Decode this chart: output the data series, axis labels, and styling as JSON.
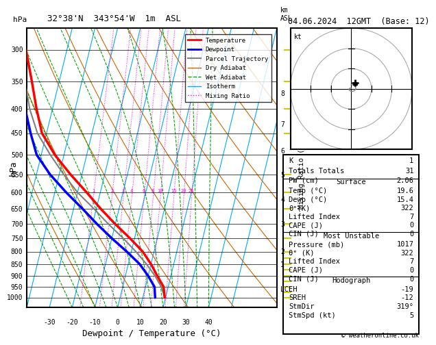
{
  "title_left": "32°38'N  343°54'W  1m  ASL",
  "title_right": "04.06.2024  12GMT  (Base: 12)",
  "xlabel": "Dewpoint / Temperature (°C)",
  "ylabel_left": "hPa",
  "ylabel_right": "Mixing Ratio (g/kg)",
  "pressure_levels": [
    300,
    350,
    400,
    450,
    500,
    550,
    600,
    650,
    700,
    750,
    800,
    850,
    900,
    950,
    1000
  ],
  "temp_range": [
    -40,
    40
  ],
  "mixing_ratio_labels": [
    1,
    2,
    3,
    4,
    6,
    8,
    10,
    15,
    20,
    25
  ],
  "lcl_pressure": 960,
  "temp_profile_temp": [
    19.6,
    18,
    14,
    10,
    5,
    -2,
    -10,
    -18,
    -26,
    -35,
    -44,
    -52,
    -57,
    -62,
    -68
  ],
  "temp_profile_pres": [
    1000,
    950,
    900,
    850,
    800,
    750,
    700,
    650,
    600,
    550,
    500,
    450,
    400,
    350,
    300
  ],
  "dewp_profile_temp": [
    15.4,
    14,
    10,
    5,
    -2,
    -10,
    -18,
    -26,
    -35,
    -44,
    -52,
    -57,
    -62,
    -66,
    -70
  ],
  "dewp_profile_pres": [
    1000,
    950,
    900,
    850,
    800,
    750,
    700,
    650,
    600,
    550,
    500,
    450,
    400,
    350,
    300
  ],
  "parcel_temp": [
    19.6,
    17,
    13,
    8,
    2,
    -5,
    -13,
    -21,
    -30,
    -38,
    -46,
    -54,
    -60,
    -65,
    -68
  ],
  "parcel_pres": [
    1000,
    950,
    900,
    850,
    800,
    750,
    700,
    650,
    600,
    550,
    500,
    450,
    400,
    350,
    300
  ],
  "color_temp": "#ff0000",
  "color_dewp": "#0000ff",
  "color_parcel": "#808080",
  "color_dryadiabat": "#cc6600",
  "color_wetadiabat": "#00aa00",
  "color_isotherm": "#00aaff",
  "color_mixratio": "#ff00ff",
  "table_K": "1",
  "table_TT": "31",
  "table_PW": "2.06",
  "surf_temp": "19.6",
  "surf_dewp": "15.4",
  "surf_thetae": "322",
  "surf_li": "7",
  "surf_cape": "0",
  "surf_cin": "0",
  "mu_pres": "1017",
  "mu_thetae": "322",
  "mu_li": "7",
  "mu_cape": "0",
  "mu_cin": "0",
  "hodo_EH": "-19",
  "hodo_SREH": "-12",
  "hodo_StmDir": "319°",
  "hodo_StmSpd": "5"
}
